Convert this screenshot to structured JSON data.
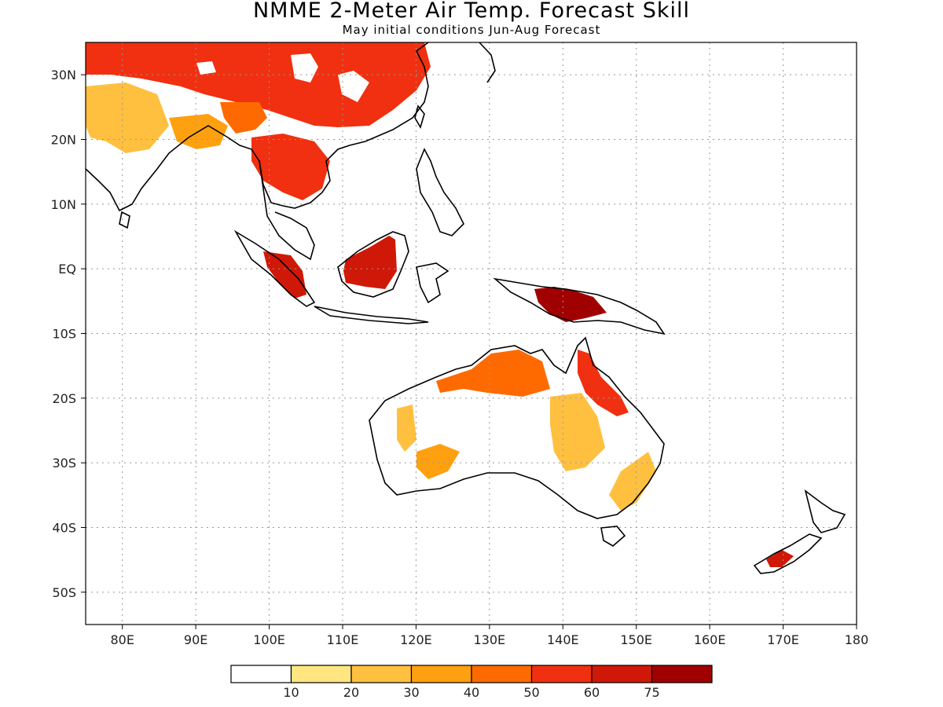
{
  "title": "NMME 2-Meter Air Temp. Forecast Skill",
  "subtitle": "May initial conditions  Jun-Aug Forecast",
  "map": {
    "lon_range": [
      75,
      180
    ],
    "lat_range": [
      -55,
      35
    ],
    "lat_ticks": [
      {
        "value": 30,
        "label": "30N"
      },
      {
        "value": 20,
        "label": "20N"
      },
      {
        "value": 10,
        "label": "10N"
      },
      {
        "value": 0,
        "label": "EQ"
      },
      {
        "value": -10,
        "label": "10S"
      },
      {
        "value": -20,
        "label": "20S"
      },
      {
        "value": -30,
        "label": "30S"
      },
      {
        "value": -40,
        "label": "40S"
      },
      {
        "value": -50,
        "label": "50S"
      }
    ],
    "lon_ticks": [
      {
        "value": 80,
        "label": "80E"
      },
      {
        "value": 90,
        "label": "90E"
      },
      {
        "value": 100,
        "label": "100E"
      },
      {
        "value": 110,
        "label": "110E"
      },
      {
        "value": 120,
        "label": "120E"
      },
      {
        "value": 130,
        "label": "130E"
      },
      {
        "value": 140,
        "label": "140E"
      },
      {
        "value": 150,
        "label": "150E"
      },
      {
        "value": 160,
        "label": "160E"
      },
      {
        "value": 170,
        "label": "170E"
      },
      {
        "value": 180,
        "label": "180"
      }
    ],
    "grid": true
  },
  "colorbar": {
    "colors": [
      "#ffffff",
      "#ffe680",
      "#ffc040",
      "#ffa010",
      "#ff6a00",
      "#f03010",
      "#d01808",
      "#a00000"
    ],
    "tick_labels": [
      "10",
      "20",
      "30",
      "40",
      "50",
      "60",
      "75"
    ]
  },
  "skill_regions": [
    {
      "name": "china",
      "level": 5
    },
    {
      "name": "tibet",
      "level": 4
    },
    {
      "name": "india-nw",
      "level": 2
    },
    {
      "name": "india-ne",
      "level": 3
    },
    {
      "name": "indochina",
      "level": 5
    },
    {
      "name": "sumatra",
      "level": 6
    },
    {
      "name": "borneo",
      "level": 6
    },
    {
      "name": "new-guinea",
      "level": 7
    },
    {
      "name": "n-australia",
      "level": 4
    },
    {
      "name": "queensland",
      "level": 5
    },
    {
      "name": "c-australia",
      "level": 2
    },
    {
      "name": "sw-australia",
      "level": 3
    },
    {
      "name": "nz-south",
      "level": 6
    }
  ]
}
